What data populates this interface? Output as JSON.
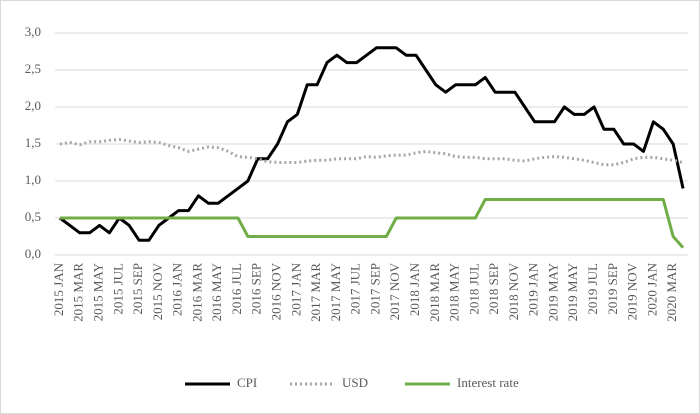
{
  "chart_data": {
    "type": "line",
    "categories": [
      "2015 JAN",
      null,
      "2015 MAR",
      null,
      "2015 MAY",
      null,
      "2015 JUL",
      null,
      "2015 SEP",
      null,
      "2015 NOV",
      null,
      "2016 JAN",
      null,
      "2016 MAR",
      null,
      "2016 MAY",
      null,
      "2016 JUL",
      null,
      "2016 SEP",
      null,
      "2016 NOV",
      null,
      "2017 JAN",
      null,
      "2017 MAR",
      null,
      "2017 MAY",
      null,
      "2017 JUL",
      null,
      "2017 SEP",
      null,
      "2017 NOV",
      null,
      "2018 JAN",
      null,
      "2018 MAR",
      null,
      "2018 MAY",
      null,
      "2018 JUL",
      null,
      "2018 SEP",
      null,
      "2018 NOV",
      null,
      "2019 JAN",
      null,
      "2019 MAY",
      null,
      "2019 MAY",
      null,
      "2019 JUL",
      null,
      "2019 SEP",
      null,
      "2019 NOV",
      null,
      "2020 JAN",
      null,
      "2020 MAR",
      null
    ],
    "series": [
      {
        "name": "CPI",
        "color": "#000000",
        "dash": "solid",
        "values": [
          0.5,
          0.4,
          0.3,
          0.3,
          0.4,
          0.3,
          0.5,
          0.4,
          0.2,
          0.2,
          0.4,
          0.5,
          0.6,
          0.6,
          0.8,
          0.7,
          0.7,
          0.8,
          0.9,
          1.0,
          1.3,
          1.3,
          1.5,
          1.8,
          1.9,
          2.3,
          2.3,
          2.6,
          2.7,
          2.6,
          2.6,
          2.7,
          2.8,
          2.8,
          2.8,
          2.7,
          2.7,
          2.5,
          2.3,
          2.2,
          2.3,
          2.3,
          2.3,
          2.4,
          2.2,
          2.2,
          2.2,
          2.0,
          1.8,
          1.8,
          1.8,
          2.0,
          1.9,
          1.9,
          2.0,
          1.7,
          1.7,
          1.5,
          1.5,
          1.4,
          1.8,
          1.7,
          1.5,
          0.9
        ]
      },
      {
        "name": "USD",
        "color": "#a6a6a6",
        "dash": "dotted",
        "values": [
          1.5,
          1.52,
          1.49,
          1.53,
          1.53,
          1.55,
          1.56,
          1.54,
          1.52,
          1.53,
          1.52,
          1.48,
          1.45,
          1.4,
          1.43,
          1.46,
          1.45,
          1.4,
          1.33,
          1.32,
          1.3,
          1.26,
          1.25,
          1.25,
          1.25,
          1.27,
          1.28,
          1.28,
          1.3,
          1.3,
          1.3,
          1.33,
          1.32,
          1.34,
          1.35,
          1.35,
          1.38,
          1.4,
          1.38,
          1.37,
          1.33,
          1.32,
          1.32,
          1.3,
          1.3,
          1.3,
          1.28,
          1.27,
          1.3,
          1.32,
          1.33,
          1.32,
          1.3,
          1.28,
          1.25,
          1.22,
          1.22,
          1.25,
          1.3,
          1.32,
          1.32,
          1.3,
          1.28,
          1.25
        ]
      },
      {
        "name": "Interest rate",
        "color": "#70ad47",
        "dash": "solid",
        "values": [
          0.5,
          0.5,
          0.5,
          0.5,
          0.5,
          0.5,
          0.5,
          0.5,
          0.5,
          0.5,
          0.5,
          0.5,
          0.5,
          0.5,
          0.5,
          0.5,
          0.5,
          0.5,
          0.5,
          0.25,
          0.25,
          0.25,
          0.25,
          0.25,
          0.25,
          0.25,
          0.25,
          0.25,
          0.25,
          0.25,
          0.25,
          0.25,
          0.25,
          0.25,
          0.5,
          0.5,
          0.5,
          0.5,
          0.5,
          0.5,
          0.5,
          0.5,
          0.5,
          0.75,
          0.75,
          0.75,
          0.75,
          0.75,
          0.75,
          0.75,
          0.75,
          0.75,
          0.75,
          0.75,
          0.75,
          0.75,
          0.75,
          0.75,
          0.75,
          0.75,
          0.75,
          0.75,
          0.25,
          0.1
        ]
      }
    ],
    "ylim": [
      0,
      3
    ],
    "yticks": [
      {
        "value": 0,
        "label": "0,0"
      },
      {
        "value": 0.5,
        "label": "0,5"
      },
      {
        "value": 1,
        "label": "1,0"
      },
      {
        "value": 1.5,
        "label": "1,5"
      },
      {
        "value": 2,
        "label": "2,0"
      },
      {
        "value": 2.5,
        "label": "2,5"
      },
      {
        "value": 3,
        "label": "3,0"
      }
    ],
    "grid": true,
    "legend": "bottom"
  }
}
